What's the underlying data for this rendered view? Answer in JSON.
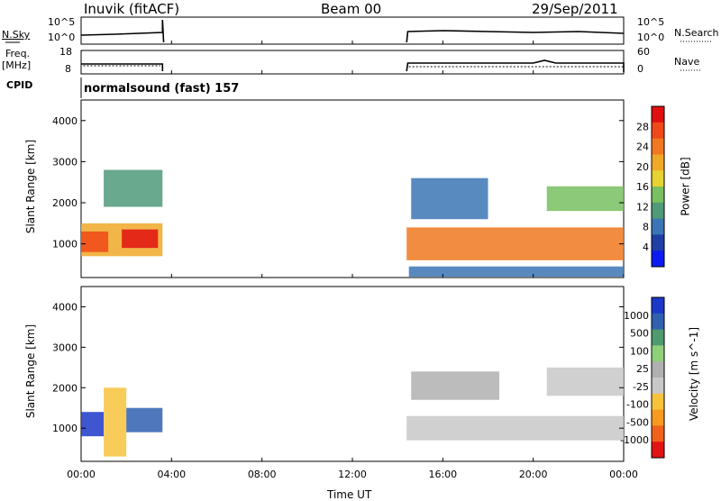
{
  "header": {
    "station": "Inuvik (fitACF)",
    "beam": "Beam 00",
    "date": "29/Sep/2011"
  },
  "panels": {
    "nsky": {
      "label": "N.Sky",
      "ticks": [
        "10^5",
        "10^0"
      ]
    },
    "nsearch": {
      "label": "N.Search",
      "ticks": [
        "10^5",
        "10^0"
      ]
    },
    "freq": {
      "label_line1": "Freq.",
      "label_line2": "[MHz]",
      "ticks": [
        "18",
        "8"
      ]
    },
    "nave": {
      "label": "Nave",
      "ticks": [
        "60",
        "0"
      ]
    },
    "cpid": {
      "label": "CPID",
      "text": "normalsound (fast) 157"
    }
  },
  "colors": {
    "power": [
      "#0c1cf0",
      "#1f3fa5",
      "#3b75b5",
      "#4f9a79",
      "#78c060",
      "#e6d230",
      "#f0a828",
      "#f07820",
      "#f04818",
      "#e01010"
    ],
    "velocity": [
      "#e21313",
      "#f0621a",
      "#f79a20",
      "#f7c33c",
      "#c8c8c8",
      "#b0b0b0",
      "#8fd07a",
      "#4f9a6e",
      "#3060b0",
      "#1c38c8"
    ]
  },
  "chart_data": [
    {
      "type": "heatmap",
      "title": "",
      "xlabel": "Time UT",
      "ylabel": "Slant Range [km]",
      "xlim": [
        "00:00",
        "24:00"
      ],
      "ylim": [
        180,
        4500
      ],
      "x_ticks": [
        "00:00",
        "04:00",
        "08:00",
        "12:00",
        "16:00",
        "20:00",
        "00:00"
      ],
      "y_ticks": [
        "1000",
        "2000",
        "3000",
        "4000"
      ],
      "colorbar": {
        "label": "Power [dB]",
        "ticks": [
          "28",
          "24",
          "20",
          "16",
          "12",
          "8",
          "4"
        ],
        "range": [
          0,
          30
        ]
      },
      "data_blocks": [
        {
          "t_start": 0.0,
          "t_end": 3.6,
          "range_start": 700,
          "range_end": 1500,
          "value": 20
        },
        {
          "t_start": 0.0,
          "t_end": 1.2,
          "range_start": 800,
          "range_end": 1300,
          "value": 26
        },
        {
          "t_start": 1.8,
          "t_end": 3.4,
          "range_start": 900,
          "range_end": 1350,
          "value": 27
        },
        {
          "t_start": 1.0,
          "t_end": 3.6,
          "range_start": 1900,
          "range_end": 2800,
          "value": 10
        },
        {
          "t_start": 14.4,
          "t_end": 24.0,
          "range_start": 600,
          "range_end": 1400,
          "value": 22
        },
        {
          "t_start": 14.6,
          "t_end": 18.0,
          "range_start": 1600,
          "range_end": 2600,
          "value": 8
        },
        {
          "t_start": 20.6,
          "t_end": 24.0,
          "range_start": 1800,
          "range_end": 2400,
          "value": 14
        },
        {
          "t_start": 14.5,
          "t_end": 24.0,
          "range_start": 200,
          "range_end": 450,
          "value": 6
        }
      ]
    },
    {
      "type": "heatmap",
      "title": "",
      "xlabel": "Time UT",
      "ylabel": "Slant Range [km]",
      "xlim": [
        "00:00",
        "24:00"
      ],
      "ylim": [
        180,
        4500
      ],
      "x_ticks": [
        "00:00",
        "04:00",
        "08:00",
        "12:00",
        "16:00",
        "20:00",
        "00:00"
      ],
      "y_ticks": [
        "1000",
        "2000",
        "3000",
        "4000"
      ],
      "colorbar": {
        "label": "Velocity [m s^-1]",
        "ticks": [
          "1000",
          "500",
          "100",
          "25",
          "-25",
          "-100",
          "-500",
          "-1000"
        ],
        "range": [
          -1000,
          1000
        ]
      },
      "data_blocks": [
        {
          "t_start": 0.0,
          "t_end": 1.0,
          "range_start": 800,
          "range_end": 1400,
          "value": 800
        },
        {
          "t_start": 1.0,
          "t_end": 2.0,
          "range_start": 300,
          "range_end": 2000,
          "value": -300
        },
        {
          "t_start": 2.0,
          "t_end": 3.6,
          "range_start": 900,
          "range_end": 1500,
          "value": 700
        },
        {
          "t_start": 14.4,
          "t_end": 24.0,
          "range_start": 700,
          "range_end": 1300,
          "value": -200
        },
        {
          "t_start": 14.6,
          "t_end": 18.5,
          "range_start": 1700,
          "range_end": 2400,
          "value": 10
        },
        {
          "t_start": 20.6,
          "t_end": 24.0,
          "range_start": 1800,
          "range_end": 2500,
          "value": -10
        }
      ]
    },
    {
      "type": "line",
      "title": "",
      "ylabel": "Freq. [MHz]",
      "x": [
        "00:00",
        "03:40",
        "14:24",
        "20:00",
        "24:00"
      ],
      "series": [
        {
          "values": [
            11,
            11,
            11,
            11,
            11
          ]
        }
      ],
      "ylim": [
        8,
        18
      ]
    }
  ],
  "x_axis": {
    "label": "Time UT",
    "ticks": [
      "00:00",
      "04:00",
      "08:00",
      "12:00",
      "16:00",
      "20:00",
      "00:00"
    ]
  }
}
